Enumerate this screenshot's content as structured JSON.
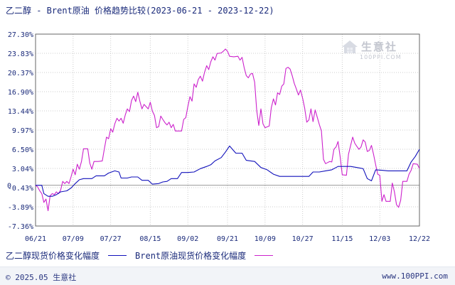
{
  "title": "乙二醇 - Brent原油 价格趋势比较(2023-06-21 - 2023-12-22)",
  "watermark": {
    "brand": "生意社",
    "url": "100PPI.COM",
    "icon": "house-logo-icon"
  },
  "footer": {
    "copyright": "© 2025.05 生意社",
    "site": "www.100PPI.com"
  },
  "colors": {
    "series1": "#1111bb",
    "series2": "#cc22cc",
    "grid": "#cccccc",
    "axis": "#666666",
    "text": "#1a2a7a"
  },
  "chart_data": {
    "type": "line",
    "ylim": [
      -7.36,
      27.3
    ],
    "yticks": [
      "27.30%",
      "23.83%",
      "20.37%",
      "16.90%",
      "13.44%",
      "9.97%",
      "6.50%",
      "3.04%",
      "-0.43%",
      "-3.89%",
      "-7.36%"
    ],
    "ytick_values": [
      27.3,
      23.83,
      20.37,
      16.9,
      13.44,
      9.97,
      6.5,
      3.04,
      -0.43,
      -3.89,
      -7.36
    ],
    "zero_label": "0",
    "xlim": [
      "2023-06-21",
      "2023-12-22"
    ],
    "xticks": [
      {
        "label": "06/21",
        "date": "2023-06-21"
      },
      {
        "label": "07/09",
        "date": "2023-07-09"
      },
      {
        "label": "07/27",
        "date": "2023-07-27"
      },
      {
        "label": "08/15",
        "date": "2023-08-15"
      },
      {
        "label": "09/02",
        "date": "2023-09-02"
      },
      {
        "label": "09/21",
        "date": "2023-09-21"
      },
      {
        "label": "10/09",
        "date": "2023-10-09"
      },
      {
        "label": "10/27",
        "date": "2023-10-27"
      },
      {
        "label": "11/15",
        "date": "2023-11-15"
      },
      {
        "label": "12/03",
        "date": "2023-12-03"
      },
      {
        "label": "12/22",
        "date": "2023-12-22"
      }
    ],
    "grid": true,
    "legend": "bottom",
    "series": [
      {
        "name": "乙二醇现货价格变化幅度",
        "color": "#1111bb",
        "points": [
          [
            "2023-06-21",
            0.0
          ],
          [
            "2023-06-24",
            0.0
          ],
          [
            "2023-06-25",
            -1.5
          ],
          [
            "2023-06-27",
            -2.0
          ],
          [
            "2023-06-29",
            -2.0
          ],
          [
            "2023-07-01",
            -1.7
          ],
          [
            "2023-07-03",
            -1.2
          ],
          [
            "2023-07-06",
            -1.0
          ],
          [
            "2023-07-08",
            -0.5
          ],
          [
            "2023-07-10",
            0.3
          ],
          [
            "2023-07-12",
            1.0
          ],
          [
            "2023-07-14",
            1.2
          ],
          [
            "2023-07-18",
            1.2
          ],
          [
            "2023-07-20",
            1.7
          ],
          [
            "2023-07-24",
            1.7
          ],
          [
            "2023-07-26",
            2.2
          ],
          [
            "2023-07-29",
            2.6
          ],
          [
            "2023-07-31",
            2.4
          ],
          [
            "2023-08-01",
            1.3
          ],
          [
            "2023-08-04",
            1.3
          ],
          [
            "2023-08-06",
            1.5
          ],
          [
            "2023-08-09",
            1.5
          ],
          [
            "2023-08-11",
            0.9
          ],
          [
            "2023-08-14",
            0.9
          ],
          [
            "2023-08-16",
            0.2
          ],
          [
            "2023-08-19",
            0.3
          ],
          [
            "2023-08-21",
            0.6
          ],
          [
            "2023-08-23",
            0.7
          ],
          [
            "2023-08-25",
            1.2
          ],
          [
            "2023-08-28",
            1.2
          ],
          [
            "2023-08-30",
            2.3
          ],
          [
            "2023-09-02",
            2.3
          ],
          [
            "2023-09-05",
            2.4
          ],
          [
            "2023-09-08",
            3.0
          ],
          [
            "2023-09-11",
            3.4
          ],
          [
            "2023-09-13",
            3.7
          ],
          [
            "2023-09-15",
            4.4
          ],
          [
            "2023-09-18",
            5.0
          ],
          [
            "2023-09-20",
            6.0
          ],
          [
            "2023-09-22",
            7.1
          ],
          [
            "2023-09-25",
            5.8
          ],
          [
            "2023-09-28",
            5.8
          ],
          [
            "2023-09-30",
            4.5
          ],
          [
            "2023-10-04",
            4.3
          ],
          [
            "2023-10-07",
            3.2
          ],
          [
            "2023-10-10",
            2.8
          ],
          [
            "2023-10-13",
            2.0
          ],
          [
            "2023-10-16",
            1.6
          ],
          [
            "2023-10-22",
            1.6
          ],
          [
            "2023-10-27",
            1.6
          ],
          [
            "2023-10-30",
            1.6
          ],
          [
            "2023-11-01",
            2.4
          ],
          [
            "2023-11-04",
            2.4
          ],
          [
            "2023-11-07",
            2.6
          ],
          [
            "2023-11-10",
            2.8
          ],
          [
            "2023-11-13",
            3.4
          ],
          [
            "2023-11-19",
            3.4
          ],
          [
            "2023-11-22",
            3.2
          ],
          [
            "2023-11-25",
            3.0
          ],
          [
            "2023-11-27",
            1.2
          ],
          [
            "2023-11-29",
            0.8
          ],
          [
            "2023-12-01",
            2.8
          ],
          [
            "2023-12-04",
            2.7
          ],
          [
            "2023-12-07",
            2.6
          ],
          [
            "2023-12-10",
            2.6
          ],
          [
            "2023-12-13",
            2.6
          ],
          [
            "2023-12-16",
            2.6
          ],
          [
            "2023-12-18",
            4.2
          ],
          [
            "2023-12-20",
            5.2
          ],
          [
            "2023-12-22",
            6.5
          ]
        ]
      },
      {
        "name": "Brent原油现货价格变化幅度",
        "color": "#cc22cc",
        "points": [
          [
            "2023-06-21",
            0.0
          ],
          [
            "2023-06-22",
            -0.3
          ],
          [
            "2023-06-23",
            -1.0
          ],
          [
            "2023-06-24",
            -1.5
          ],
          [
            "2023-06-25",
            -3.1
          ],
          [
            "2023-06-26",
            -2.5
          ],
          [
            "2023-06-27",
            -4.6
          ],
          [
            "2023-06-28",
            -1.9
          ],
          [
            "2023-06-29",
            -1.5
          ],
          [
            "2023-06-30",
            -1.7
          ],
          [
            "2023-07-01",
            -1.2
          ],
          [
            "2023-07-02",
            -1.5
          ],
          [
            "2023-07-03",
            -0.9
          ],
          [
            "2023-07-04",
            0.7
          ],
          [
            "2023-07-05",
            0.3
          ],
          [
            "2023-07-06",
            0.7
          ],
          [
            "2023-07-07",
            0.3
          ],
          [
            "2023-07-08",
            1.5
          ],
          [
            "2023-07-09",
            2.9
          ],
          [
            "2023-07-10",
            1.9
          ],
          [
            "2023-07-11",
            3.8
          ],
          [
            "2023-07-12",
            2.9
          ],
          [
            "2023-07-13",
            4.3
          ],
          [
            "2023-07-14",
            6.6
          ],
          [
            "2023-07-16",
            6.6
          ],
          [
            "2023-07-17",
            4.0
          ],
          [
            "2023-07-18",
            2.9
          ],
          [
            "2023-07-19",
            4.3
          ],
          [
            "2023-07-21",
            4.3
          ],
          [
            "2023-07-23",
            4.4
          ],
          [
            "2023-07-24",
            6.6
          ],
          [
            "2023-07-25",
            8.7
          ],
          [
            "2023-07-26",
            8.4
          ],
          [
            "2023-07-27",
            10.2
          ],
          [
            "2023-07-28",
            9.6
          ],
          [
            "2023-07-29",
            11.1
          ],
          [
            "2023-07-30",
            12.1
          ],
          [
            "2023-07-31",
            11.6
          ],
          [
            "2023-08-01",
            12.1
          ],
          [
            "2023-08-02",
            11.2
          ],
          [
            "2023-08-03",
            12.7
          ],
          [
            "2023-08-04",
            13.8
          ],
          [
            "2023-08-05",
            13.3
          ],
          [
            "2023-08-06",
            15.3
          ],
          [
            "2023-08-07",
            16.1
          ],
          [
            "2023-08-08",
            15.1
          ],
          [
            "2023-08-09",
            16.8
          ],
          [
            "2023-08-10",
            15.2
          ],
          [
            "2023-08-11",
            13.8
          ],
          [
            "2023-08-12",
            14.6
          ],
          [
            "2023-08-13",
            14.2
          ],
          [
            "2023-08-14",
            13.8
          ],
          [
            "2023-08-15",
            15.0
          ],
          [
            "2023-08-16",
            13.4
          ],
          [
            "2023-08-17",
            12.6
          ],
          [
            "2023-08-18",
            10.4
          ],
          [
            "2023-08-19",
            10.6
          ],
          [
            "2023-08-20",
            12.5
          ],
          [
            "2023-08-21",
            11.9
          ],
          [
            "2023-08-22",
            11.3
          ],
          [
            "2023-08-23",
            10.9
          ],
          [
            "2023-08-24",
            11.4
          ],
          [
            "2023-08-25",
            10.4
          ],
          [
            "2023-08-26",
            11.0
          ],
          [
            "2023-08-27",
            9.8
          ],
          [
            "2023-08-30",
            9.8
          ],
          [
            "2023-08-31",
            11.9
          ],
          [
            "2023-09-01",
            12.2
          ],
          [
            "2023-09-02",
            14.2
          ],
          [
            "2023-09-03",
            16.0
          ],
          [
            "2023-09-04",
            15.2
          ],
          [
            "2023-09-05",
            18.3
          ],
          [
            "2023-09-06",
            17.7
          ],
          [
            "2023-09-07",
            19.1
          ],
          [
            "2023-09-08",
            19.7
          ],
          [
            "2023-09-09",
            18.8
          ],
          [
            "2023-09-10",
            20.4
          ],
          [
            "2023-09-11",
            21.6
          ],
          [
            "2023-09-12",
            20.9
          ],
          [
            "2023-09-13",
            22.3
          ],
          [
            "2023-09-14",
            23.2
          ],
          [
            "2023-09-15",
            22.6
          ],
          [
            "2023-09-16",
            23.8
          ],
          [
            "2023-09-18",
            23.9
          ],
          [
            "2023-09-19",
            24.2
          ],
          [
            "2023-09-20",
            24.6
          ],
          [
            "2023-09-21",
            24.2
          ],
          [
            "2023-09-22",
            23.3
          ],
          [
            "2023-09-24",
            23.2
          ],
          [
            "2023-09-26",
            23.3
          ],
          [
            "2023-09-27",
            22.6
          ],
          [
            "2023-09-28",
            23.1
          ],
          [
            "2023-09-29",
            21.2
          ],
          [
            "2023-09-30",
            19.8
          ],
          [
            "2023-10-01",
            19.4
          ],
          [
            "2023-10-02",
            20.1
          ],
          [
            "2023-10-03",
            20.2
          ],
          [
            "2023-10-04",
            18.6
          ],
          [
            "2023-10-05",
            13.5
          ],
          [
            "2023-10-06",
            10.8
          ],
          [
            "2023-10-07",
            13.8
          ],
          [
            "2023-10-08",
            11.1
          ],
          [
            "2023-10-09",
            10.4
          ],
          [
            "2023-10-11",
            10.7
          ],
          [
            "2023-10-12",
            14.0
          ],
          [
            "2023-10-13",
            15.6
          ],
          [
            "2023-10-14",
            14.5
          ],
          [
            "2023-10-15",
            16.7
          ],
          [
            "2023-10-16",
            16.4
          ],
          [
            "2023-10-17",
            17.9
          ],
          [
            "2023-10-18",
            18.3
          ],
          [
            "2023-10-19",
            21.1
          ],
          [
            "2023-10-20",
            21.3
          ],
          [
            "2023-10-21",
            21.0
          ],
          [
            "2023-10-22",
            19.8
          ],
          [
            "2023-10-23",
            18.4
          ],
          [
            "2023-10-24",
            17.4
          ],
          [
            "2023-10-25",
            16.3
          ],
          [
            "2023-10-26",
            17.2
          ],
          [
            "2023-10-27",
            15.7
          ],
          [
            "2023-10-28",
            13.9
          ],
          [
            "2023-10-29",
            11.4
          ],
          [
            "2023-10-30",
            11.8
          ],
          [
            "2023-10-31",
            13.8
          ],
          [
            "2023-11-01",
            11.5
          ],
          [
            "2023-11-02",
            13.6
          ],
          [
            "2023-11-03",
            12.3
          ],
          [
            "2023-11-04",
            11.0
          ],
          [
            "2023-11-05",
            9.8
          ],
          [
            "2023-11-06",
            4.7
          ],
          [
            "2023-11-07",
            3.9
          ],
          [
            "2023-11-08",
            4.1
          ],
          [
            "2023-11-09",
            4.3
          ],
          [
            "2023-11-10",
            4.2
          ],
          [
            "2023-11-11",
            6.5
          ],
          [
            "2023-11-12",
            6.9
          ],
          [
            "2023-11-13",
            7.9
          ],
          [
            "2023-11-14",
            5.1
          ],
          [
            "2023-11-15",
            1.9
          ],
          [
            "2023-11-17",
            1.8
          ],
          [
            "2023-11-18",
            5.6
          ],
          [
            "2023-11-19",
            7.2
          ],
          [
            "2023-11-20",
            8.7
          ],
          [
            "2023-11-21",
            7.6
          ],
          [
            "2023-11-22",
            7.0
          ],
          [
            "2023-11-23",
            6.5
          ],
          [
            "2023-11-24",
            6.9
          ],
          [
            "2023-11-25",
            8.2
          ],
          [
            "2023-11-26",
            7.8
          ],
          [
            "2023-11-27",
            6.1
          ],
          [
            "2023-11-28",
            6.3
          ],
          [
            "2023-11-29",
            7.2
          ],
          [
            "2023-11-30",
            5.6
          ],
          [
            "2023-12-01",
            3.7
          ],
          [
            "2023-12-02",
            2.0
          ],
          [
            "2023-12-03",
            1.8
          ],
          [
            "2023-12-04",
            -2.9
          ],
          [
            "2023-12-05",
            -1.7
          ],
          [
            "2023-12-06",
            -2.9
          ],
          [
            "2023-12-08",
            -2.9
          ],
          [
            "2023-12-09",
            0.4
          ],
          [
            "2023-12-10",
            -1.2
          ],
          [
            "2023-12-11",
            -3.5
          ],
          [
            "2023-12-12",
            -4.0
          ],
          [
            "2023-12-13",
            -2.7
          ],
          [
            "2023-12-14",
            0.7
          ],
          [
            "2023-12-16",
            0.7
          ],
          [
            "2023-12-17",
            2.0
          ],
          [
            "2023-12-18",
            2.7
          ],
          [
            "2023-12-19",
            3.9
          ],
          [
            "2023-12-21",
            3.8
          ],
          [
            "2023-12-22",
            3.0
          ]
        ]
      }
    ]
  }
}
